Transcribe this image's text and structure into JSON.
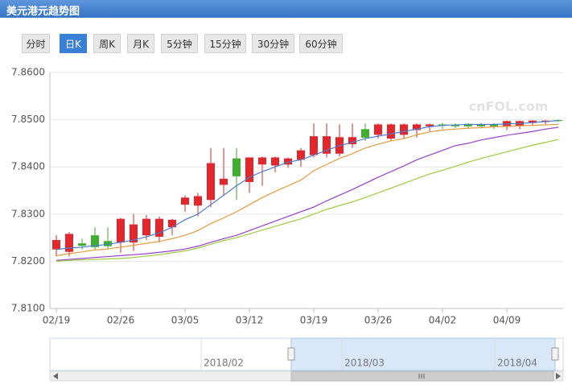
{
  "header": {
    "title": "美元港元趋势图"
  },
  "tabs": [
    {
      "label": "分时",
      "active": false
    },
    {
      "label": "日K",
      "active": true
    },
    {
      "label": "周K",
      "active": false
    },
    {
      "label": "月K",
      "active": false
    },
    {
      "label": "5分钟",
      "active": false
    },
    {
      "label": "15分钟",
      "active": false
    },
    {
      "label": "30分钟",
      "active": false
    },
    {
      "label": "60分钟",
      "active": false
    }
  ],
  "chart_data": {
    "type": "candlestick",
    "categories": [
      "02/19",
      null,
      null,
      null,
      null,
      "02/26",
      null,
      null,
      null,
      null,
      "03/05",
      null,
      null,
      null,
      null,
      "03/12",
      null,
      null,
      null,
      null,
      "03/19",
      null,
      null,
      null,
      null,
      "03/26",
      null,
      null,
      null,
      null,
      "04/02",
      null,
      null,
      null,
      null,
      "04/09",
      null,
      null,
      null,
      null
    ],
    "open": [
      7.8225,
      7.822,
      7.8238,
      7.8255,
      7.8243,
      7.824,
      7.824,
      7.8255,
      7.8252,
      7.8272,
      7.832,
      7.8318,
      7.833,
      7.8362,
      7.8418,
      7.8368,
      7.8405,
      7.8403,
      7.8405,
      7.8415,
      7.8425,
      7.8428,
      7.8428,
      7.8448,
      7.848,
      7.8468,
      7.846,
      7.8468,
      7.8478,
      7.8486,
      7.849,
      7.8489,
      7.8491,
      7.849,
      7.849,
      7.8485,
      7.8487,
      7.8493,
      7.8495,
      7.8499
    ],
    "high": [
      7.8255,
      7.8262,
      7.8248,
      7.8272,
      7.8272,
      7.8292,
      7.83,
      7.8298,
      7.8295,
      7.829,
      7.834,
      7.8345,
      7.844,
      7.844,
      7.844,
      7.842,
      7.8422,
      7.8422,
      7.842,
      7.844,
      7.8492,
      7.8492,
      7.849,
      7.8492,
      7.8492,
      7.8492,
      7.8492,
      7.8492,
      7.8492,
      7.8492,
      7.8493,
      7.8492,
      7.8493,
      7.8493,
      7.8493,
      7.8498,
      7.8498,
      7.8499,
      7.8499,
      7.85
    ],
    "low": [
      7.821,
      7.821,
      7.8225,
      7.8225,
      7.8225,
      7.8218,
      7.8222,
      7.8245,
      7.824,
      7.8255,
      7.8305,
      7.8295,
      7.8315,
      7.834,
      7.833,
      7.8345,
      7.836,
      7.8388,
      7.8398,
      7.84,
      7.842,
      7.842,
      7.8422,
      7.844,
      7.8455,
      7.846,
      7.8455,
      7.846,
      7.8462,
      7.8475,
      7.848,
      7.8482,
      7.848,
      7.8482,
      7.848,
      7.8478,
      7.848,
      7.8488,
      7.849,
      7.8495
    ],
    "close": [
      7.8245,
      7.8258,
      7.8233,
      7.823,
      7.8232,
      7.829,
      7.8278,
      7.829,
      7.829,
      7.8288,
      7.8335,
      7.8338,
      7.8408,
      7.8375,
      7.838,
      7.842,
      7.842,
      7.842,
      7.8418,
      7.8435,
      7.8465,
      7.8465,
      7.8463,
      7.8463,
      7.8462,
      7.849,
      7.849,
      7.849,
      7.849,
      7.849,
      7.8487,
      7.8486,
      7.8486,
      7.8486,
      7.8486,
      7.8497,
      7.8497,
      7.8498,
      7.8498,
      7.8497
    ],
    "up_color": "#e3262b",
    "down_color": "#3fad2f",
    "lines": [
      {
        "color": "#4a7fd0",
        "values": [
          7.8225,
          7.8228,
          7.823,
          7.8233,
          7.8236,
          7.824,
          7.8245,
          7.8252,
          7.826,
          7.8272,
          7.8288,
          7.83,
          7.832,
          7.834,
          7.836,
          7.8378,
          7.839,
          7.84,
          7.841,
          7.8415,
          7.8425,
          7.8435,
          7.8445,
          7.8452,
          7.846,
          7.8465,
          7.847,
          7.8475,
          7.848,
          7.8485,
          7.8488,
          7.8489,
          7.849,
          7.849,
          7.849,
          7.8491,
          7.8492,
          7.8494,
          7.8496,
          7.8498
        ]
      },
      {
        "color": "#e89a3c",
        "values": [
          7.8212,
          7.8216,
          7.822,
          7.8224,
          7.8226,
          7.823,
          7.8234,
          7.8238,
          7.8242,
          7.8248,
          7.8255,
          7.8265,
          7.828,
          7.8292,
          7.8305,
          7.832,
          7.8335,
          7.8348,
          7.836,
          7.8372,
          7.8392,
          7.8405,
          7.8418,
          7.8428,
          7.844,
          7.8448,
          7.8455,
          7.846,
          7.8468,
          7.8474,
          7.8478,
          7.848,
          7.8482,
          7.8483,
          7.8485,
          7.8486,
          7.8487,
          7.8488,
          7.8489,
          7.849
        ]
      },
      {
        "color": "#9b3fd0",
        "values": [
          7.8202,
          7.8204,
          7.8206,
          7.8208,
          7.821,
          7.8212,
          7.8214,
          7.8216,
          7.8219,
          7.8222,
          7.8226,
          7.8232,
          7.824,
          7.8248,
          7.8255,
          7.8265,
          7.8275,
          7.8285,
          7.8295,
          7.8305,
          7.8315,
          7.8328,
          7.834,
          7.8352,
          7.8365,
          7.8378,
          7.839,
          7.8402,
          7.8415,
          7.8425,
          7.8435,
          7.8445,
          7.845,
          7.8457,
          7.8462,
          7.8467,
          7.8471,
          7.8475,
          7.848,
          7.8484
        ]
      },
      {
        "color": "#9ccc3c",
        "values": [
          7.82,
          7.8202,
          7.8203,
          7.8204,
          7.8205,
          7.8206,
          7.8208,
          7.8211,
          7.8214,
          7.8218,
          7.8222,
          7.8228,
          7.8236,
          7.8244,
          7.825,
          7.8258,
          7.8266,
          7.8274,
          7.8282,
          7.829,
          7.83,
          7.831,
          7.8318,
          7.8326,
          7.8335,
          7.8345,
          7.8355,
          7.8365,
          7.8375,
          7.8385,
          7.8393,
          7.8401,
          7.841,
          7.8418,
          7.8425,
          7.8432,
          7.8439,
          7.8446,
          7.8452,
          7.8458
        ]
      }
    ],
    "ylim": [
      7.81,
      7.86
    ],
    "yticks": [
      {
        "value": 7.81,
        "label": "7.8100"
      },
      {
        "value": 7.82,
        "label": "7.8200"
      },
      {
        "value": 7.83,
        "label": "7.8300"
      },
      {
        "value": 7.84,
        "label": "7.8400"
      },
      {
        "value": 7.85,
        "label": "7.8500"
      },
      {
        "value": 7.86,
        "label": "7.8600"
      }
    ],
    "grid": true,
    "watermark": "cnFOL.com"
  },
  "navigator": {
    "labels": [
      "2018/02",
      "2018/03",
      "2018/04"
    ]
  }
}
